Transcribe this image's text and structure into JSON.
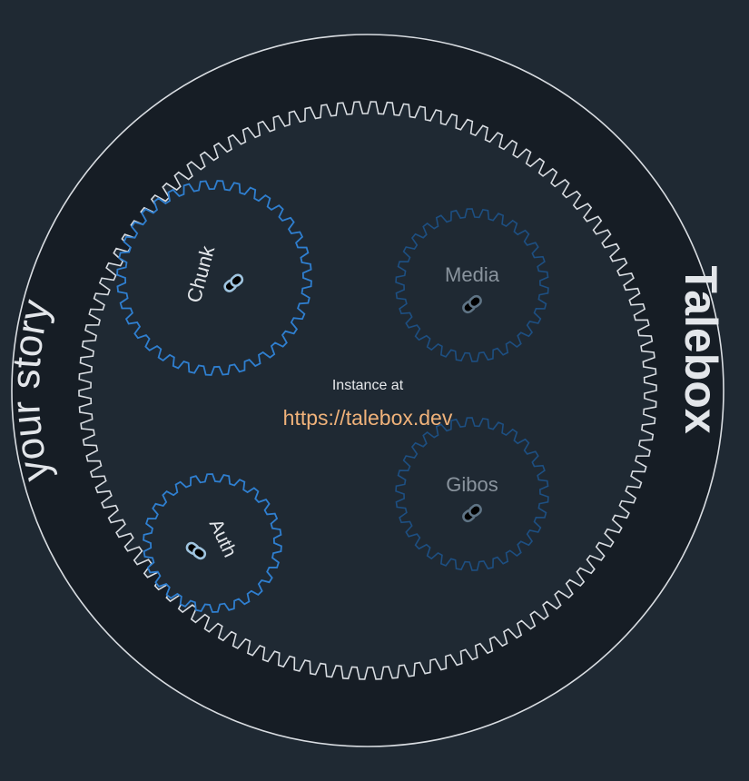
{
  "brand": {
    "name": "Talebox",
    "tagline": "your story"
  },
  "center": {
    "caption": "Instance at",
    "url": "https://talebox.dev"
  },
  "gears": [
    {
      "id": "chunk",
      "label": "Chunk",
      "icon": "link-icon",
      "active": true
    },
    {
      "id": "media",
      "label": "Media",
      "icon": "link-icon",
      "active": false
    },
    {
      "id": "gibos",
      "label": "Gibos",
      "icon": "link-icon",
      "active": false
    },
    {
      "id": "auth",
      "label": "Auth",
      "icon": "link-icon",
      "active": true
    }
  ],
  "colors": {
    "background": "#1f2933",
    "disc": "#161d25",
    "ring_gear": "#d9dde2",
    "active_gear": "#2f7fd0",
    "inactive_gear": "#1d4f82",
    "active_label": "#e3e6ea",
    "inactive_label": "#8a949e",
    "active_icon": "#9fc4df",
    "inactive_icon": "#5f7485",
    "url": "#f0b27a",
    "caption": "#e6e8eb",
    "brand": "#e3e6ea"
  }
}
